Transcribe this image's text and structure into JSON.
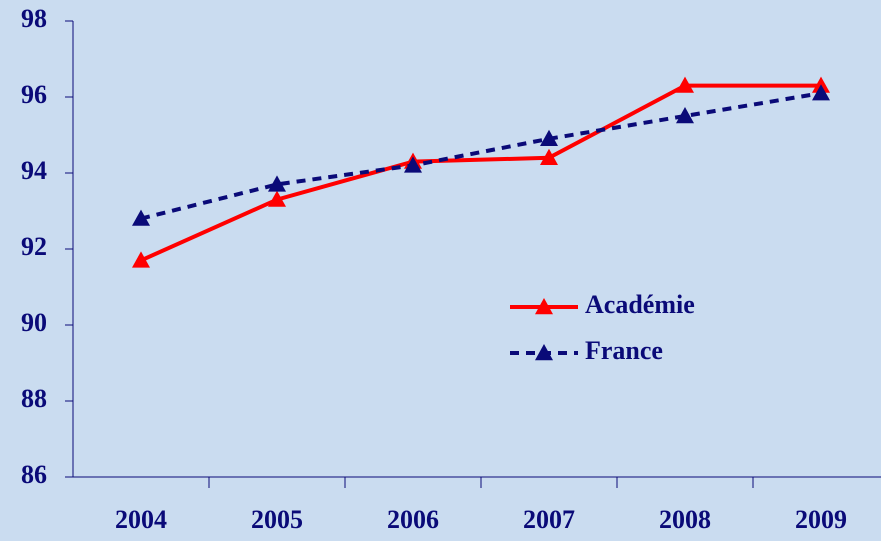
{
  "chart_data": {
    "type": "line",
    "categories": [
      "2004",
      "2005",
      "2006",
      "2007",
      "2008",
      "2009"
    ],
    "series": [
      {
        "name": "Académie",
        "color": "#ff0000",
        "dash": false,
        "values": [
          91.7,
          93.3,
          94.3,
          94.4,
          96.3,
          96.3
        ]
      },
      {
        "name": "France",
        "color": "#0a0a78",
        "dash": true,
        "values": [
          92.8,
          93.7,
          94.2,
          94.9,
          95.5,
          96.1
        ]
      }
    ],
    "ylim": [
      86,
      98
    ],
    "yticks": [
      86,
      88,
      90,
      92,
      94,
      96,
      98
    ],
    "grid": false,
    "legend": "right"
  }
}
